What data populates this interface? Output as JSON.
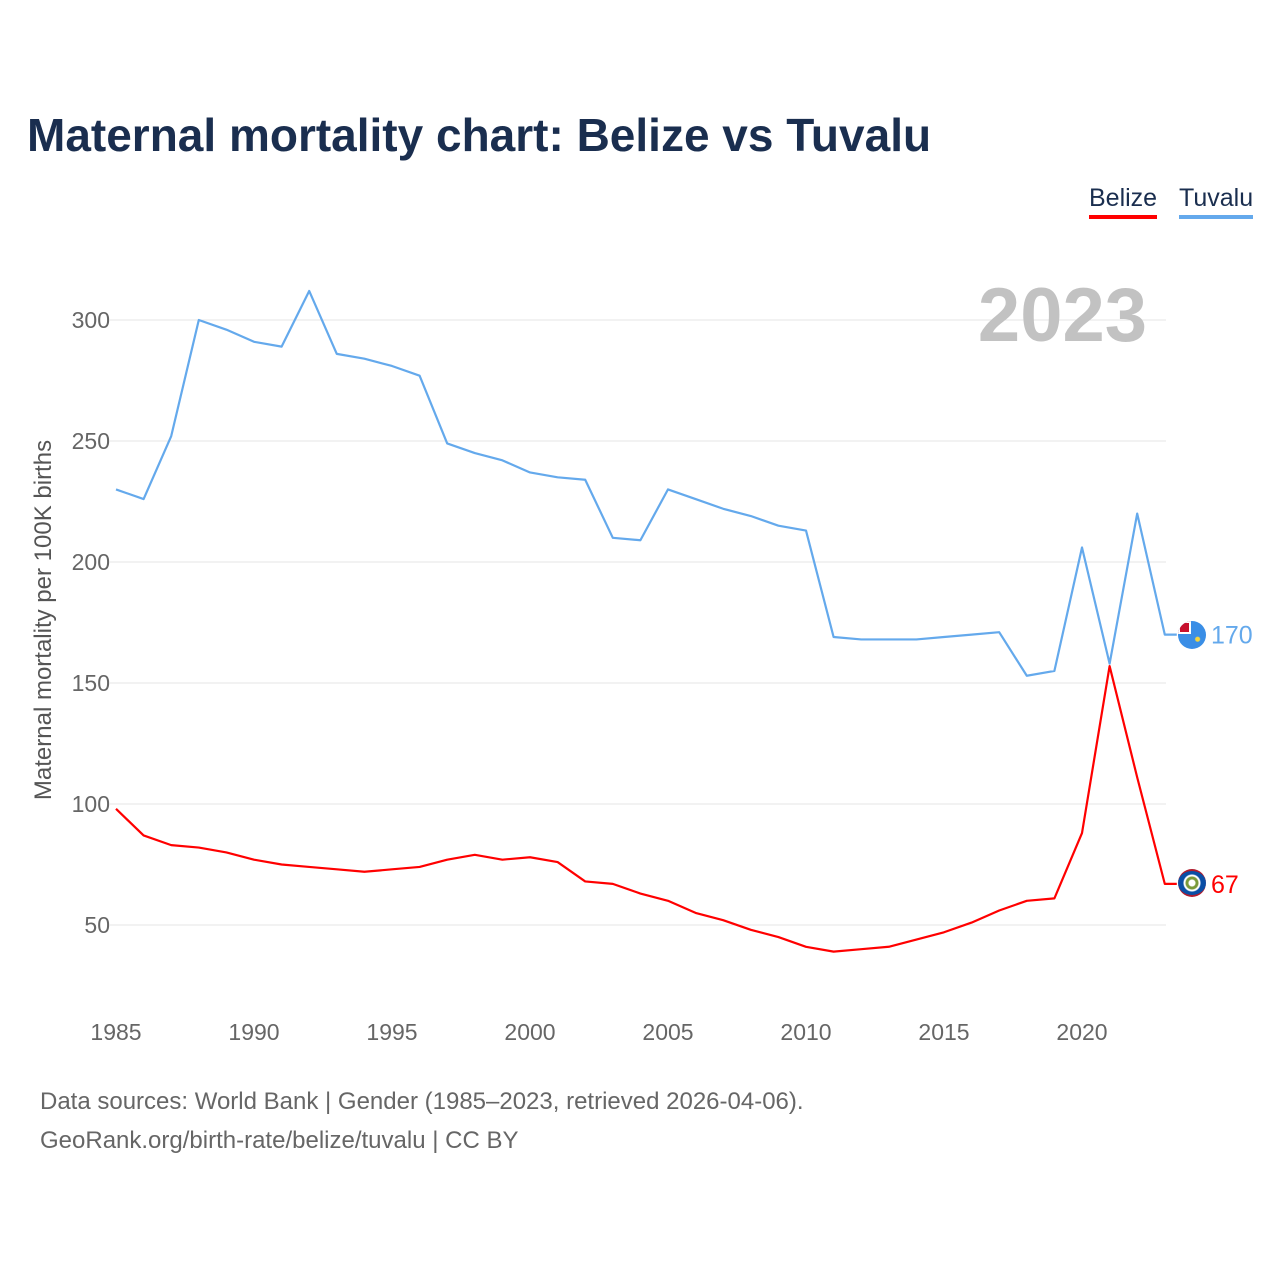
{
  "chart_data": {
    "type": "line",
    "title": "Maternal mortality chart: Belize vs Tuvalu",
    "year_label": "2023",
    "xlabel": "",
    "ylabel": "Maternal mortality per 100K births",
    "xlim": [
      1985,
      2023
    ],
    "ylim": [
      20,
      320
    ],
    "x_ticks": [
      1985,
      1990,
      1995,
      2000,
      2005,
      2010,
      2015,
      2020
    ],
    "y_ticks": [
      50,
      100,
      150,
      200,
      250,
      300
    ],
    "grid": true,
    "legend_position": "top-right",
    "x": [
      1985,
      1986,
      1987,
      1988,
      1989,
      1990,
      1991,
      1992,
      1993,
      1994,
      1995,
      1996,
      1997,
      1998,
      1999,
      2000,
      2001,
      2002,
      2003,
      2004,
      2005,
      2006,
      2007,
      2008,
      2009,
      2010,
      2011,
      2012,
      2013,
      2014,
      2015,
      2016,
      2017,
      2018,
      2019,
      2020,
      2021,
      2022,
      2023
    ],
    "series": [
      {
        "name": "Belize",
        "color": "#ff0000",
        "end_label": "67",
        "values": [
          98,
          87,
          83,
          82,
          80,
          77,
          75,
          74,
          73,
          72,
          73,
          74,
          77,
          79,
          77,
          78,
          76,
          68,
          67,
          63,
          60,
          55,
          52,
          48,
          45,
          41,
          39,
          40,
          41,
          44,
          47,
          51,
          56,
          60,
          61,
          88,
          157,
          111,
          67
        ]
      },
      {
        "name": "Tuvalu",
        "color": "#64a9ec",
        "end_label": "170",
        "values": [
          230,
          226,
          252,
          300,
          296,
          291,
          289,
          312,
          286,
          284,
          281,
          277,
          249,
          245,
          242,
          237,
          235,
          234,
          210,
          209,
          230,
          226,
          222,
          219,
          215,
          213,
          169,
          168,
          168,
          168,
          169,
          170,
          171,
          153,
          155,
          206,
          158,
          220,
          170
        ]
      }
    ]
  },
  "footer": {
    "sources": "Data sources: World Bank | Gender (1985–2023, retrieved 2026-04-06).",
    "credit": "GeoRank.org/birth-rate/belize/tuvalu | CC BY"
  }
}
